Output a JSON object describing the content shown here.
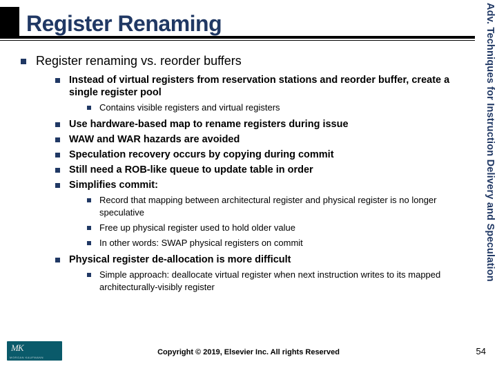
{
  "colors": {
    "accent": "#203864",
    "text": "#000000",
    "logo_bg": "#0a5a6a",
    "logo_fg": "#e8e8e8"
  },
  "title": "Register Renaming",
  "sidebar_text": "Adv. Techniques for Instruction Delivery and Speculation",
  "copyright": "Copyright © 2019, Elsevier Inc. All rights Reserved",
  "page_number": "54",
  "logo": {
    "main": "MK",
    "sub": "MORGAN KAUFMANN"
  },
  "bullets": {
    "l0_0": "Register renaming vs. reorder buffers",
    "l1_0": "Instead of virtual registers from reservation stations and reorder buffer, create a single register pool",
    "l2_0": "Contains visible registers and virtual registers",
    "l1_1": "Use hardware-based map to rename registers during issue",
    "l1_2": "WAW and WAR hazards are avoided",
    "l1_3": "Speculation recovery occurs by copying during commit",
    "l1_4": "Still need a ROB-like queue to update table in order",
    "l1_5": "Simplifies commit:",
    "l2_1": "Record that mapping between architectural register and physical register is no longer speculative",
    "l2_2": "Free up physical register used to hold older value",
    "l2_3": "In other words:  SWAP physical registers on commit",
    "l1_6": "Physical register de-allocation is more difficult",
    "l2_4": "Simple approach:  deallocate virtual register when next instruction writes to its mapped architecturally-visibly register"
  }
}
